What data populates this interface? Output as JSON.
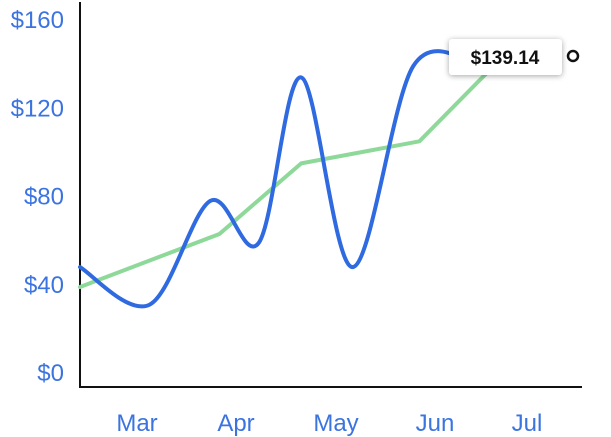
{
  "chart_data": {
    "type": "line",
    "title": "",
    "xlabel": "",
    "ylabel": "",
    "ylim": [
      0,
      160
    ],
    "y_ticks": [
      "$0",
      "$40",
      "$80",
      "$120",
      "$160"
    ],
    "x_ticks": [
      "Mar",
      "Apr",
      "May",
      "Jun",
      "Jul"
    ],
    "grid": false,
    "series": [
      {
        "key": "price",
        "color": "#2f6ae0",
        "x": [
          "2024-02-15",
          "2024-03-09",
          "2024-03-29",
          "2024-04-14",
          "2024-04-28",
          "2024-05-15",
          "2024-06-04",
          "2024-06-26"
        ],
        "y": [
          48,
          31,
          78,
          59,
          134,
          48,
          139.14,
          139.14
        ],
        "x_note_unused": ""
      },
      {
        "key": "trend",
        "color": "#8ed99a",
        "x": [
          "2024-02-15",
          "2024-04-01",
          "2024-04-28",
          "2024-06-06",
          "2024-06-29"
        ],
        "y": [
          39,
          63,
          95,
          105,
          137
        ]
      }
    ],
    "highlight": {
      "label": "$139.14",
      "value": 139.14
    }
  }
}
